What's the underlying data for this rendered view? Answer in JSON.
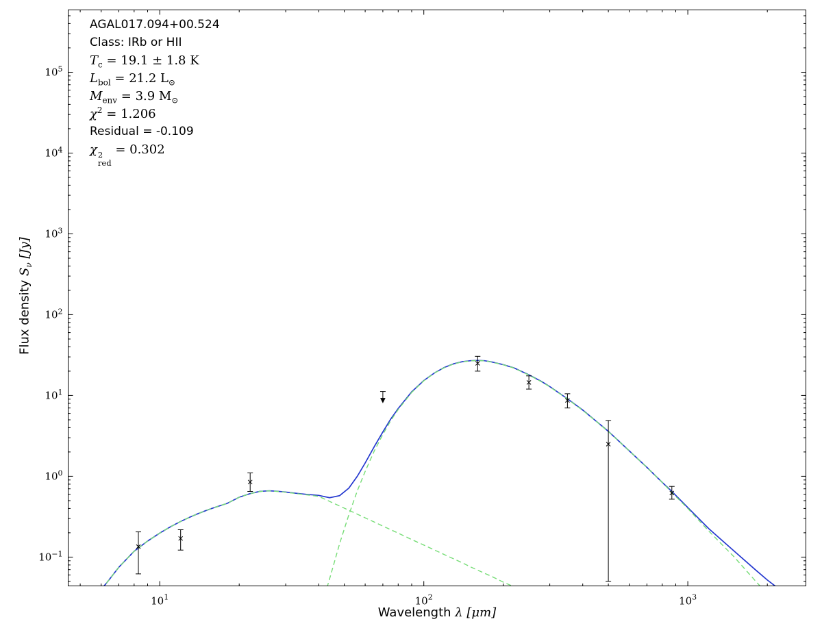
{
  "window": {
    "background": "#ffffff"
  },
  "axes": {
    "xlabel": {
      "pre": "Wavelength ",
      "sym": "λ",
      "post": " [μm]"
    },
    "ylabel": {
      "pre": "Flux density ",
      "sym": "S",
      "sub": "ν",
      "post": " [Jy]"
    }
  },
  "chart_data": {
    "type": "line",
    "xscale": "log",
    "yscale": "log",
    "title": "",
    "xlabel": "Wavelength λ [μm]",
    "ylabel": "Flux density S_ν [Jy]",
    "xlim": [
      4.5,
      2800
    ],
    "ylim": [
      0.044,
      590000
    ],
    "grid": false,
    "tick_base": "10",
    "x_tick_exponents": [
      1,
      2,
      3
    ],
    "y_tick_exponents": [
      -1,
      0,
      1,
      2,
      3,
      4,
      5
    ],
    "annotation": {
      "source": "AGAL017.094+00.524",
      "class_line": "Class: IRb or HII",
      "tc": {
        "sym": "T",
        "sub": "c",
        "rest": " = 19.1 ± 1.8 K"
      },
      "lbol": {
        "sym": "L",
        "sub": "bol",
        "eq": " = 21.2 ",
        "unit": "L",
        "unit_sub": "⊙"
      },
      "menv": {
        "sym": "M",
        "sub": "env",
        "eq": " = 3.9 ",
        "unit": "M",
        "unit_sub": "⊙"
      },
      "chi2": {
        "sym": "χ",
        "sup": "2",
        "rest": " = 1.206"
      },
      "residual": "Residual = -0.109",
      "chi2red": {
        "sym": "χ",
        "sup": "2",
        "sub": "red",
        "rest": " = 0.302"
      }
    },
    "colors": {
      "model_total": "#2438cf",
      "components": "#77dd77",
      "data_points": "#000000",
      "frame": "#000000"
    },
    "series": [
      {
        "name": "model-total",
        "color": "#2438cf",
        "style": "solid",
        "width": 1.7,
        "points": [
          [
            6.0,
            0.04
          ],
          [
            6.3,
            0.048
          ],
          [
            7,
            0.075
          ],
          [
            8,
            0.118
          ],
          [
            9,
            0.158
          ],
          [
            10,
            0.198
          ],
          [
            11,
            0.238
          ],
          [
            12,
            0.276
          ],
          [
            13,
            0.312
          ],
          [
            14,
            0.346
          ],
          [
            15,
            0.378
          ],
          [
            16,
            0.408
          ],
          [
            18,
            0.462
          ],
          [
            20,
            0.551
          ],
          [
            22,
            0.611
          ],
          [
            24,
            0.651
          ],
          [
            26,
            0.662
          ],
          [
            28,
            0.653
          ],
          [
            30,
            0.637
          ],
          [
            33,
            0.615
          ],
          [
            36,
            0.598
          ],
          [
            40,
            0.58
          ],
          [
            44,
            0.543
          ],
          [
            48,
            0.576
          ],
          [
            52,
            0.712
          ],
          [
            56,
            1.0
          ],
          [
            60,
            1.46
          ],
          [
            65,
            2.34
          ],
          [
            70,
            3.54
          ],
          [
            75,
            5.12
          ],
          [
            80,
            6.9
          ],
          [
            90,
            11.1
          ],
          [
            100,
            15.3
          ],
          [
            110,
            19.1
          ],
          [
            120,
            22.3
          ],
          [
            130,
            24.7
          ],
          [
            140,
            26.2
          ],
          [
            150,
            26.9
          ],
          [
            160,
            27.2
          ],
          [
            170,
            26.9
          ],
          [
            180,
            26.1
          ],
          [
            200,
            24.1
          ],
          [
            220,
            21.9
          ],
          [
            250,
            18.0
          ],
          [
            280,
            14.8
          ],
          [
            300,
            12.9
          ],
          [
            350,
            9.1
          ],
          [
            400,
            6.6
          ],
          [
            450,
            4.8
          ],
          [
            500,
            3.6
          ],
          [
            600,
            2.07
          ],
          [
            700,
            1.29
          ],
          [
            800,
            0.84
          ],
          [
            870,
            0.65
          ],
          [
            1000,
            0.41
          ],
          [
            1200,
            0.225
          ],
          [
            1500,
            0.118
          ],
          [
            1800,
            0.07
          ],
          [
            2000,
            0.052
          ],
          [
            2400,
            0.033
          ],
          [
            2772,
            0.021
          ]
        ]
      },
      {
        "name": "component-warm",
        "color": "#77dd77",
        "style": "dashed",
        "width": 1.4,
        "points": [
          [
            6.0,
            0.04
          ],
          [
            6.3,
            0.048
          ],
          [
            7,
            0.075
          ],
          [
            8,
            0.118
          ],
          [
            9,
            0.158
          ],
          [
            10,
            0.198
          ],
          [
            11,
            0.238
          ],
          [
            12,
            0.276
          ],
          [
            13,
            0.312
          ],
          [
            14,
            0.346
          ],
          [
            15,
            0.378
          ],
          [
            16,
            0.408
          ],
          [
            18,
            0.462
          ],
          [
            20,
            0.55
          ],
          [
            22,
            0.61
          ],
          [
            24,
            0.65
          ],
          [
            26,
            0.66
          ],
          [
            28,
            0.65
          ],
          [
            30,
            0.635
          ],
          [
            33,
            0.61
          ],
          [
            36,
            0.59
          ],
          [
            40,
            0.565
          ],
          [
            44,
            0.489
          ],
          [
            48,
            0.429
          ],
          [
            52,
            0.38
          ],
          [
            56,
            0.34
          ],
          [
            60,
            0.306
          ],
          [
            65,
            0.271
          ],
          [
            70,
            0.242
          ],
          [
            75,
            0.218
          ],
          [
            80,
            0.198
          ],
          [
            90,
            0.165
          ],
          [
            100,
            0.141
          ],
          [
            110,
            0.122
          ],
          [
            120,
            0.107
          ],
          [
            130,
            0.095
          ],
          [
            140,
            0.085
          ],
          [
            150,
            0.076
          ],
          [
            160,
            0.069
          ],
          [
            170,
            0.063
          ],
          [
            180,
            0.058
          ],
          [
            200,
            0.049
          ],
          [
            216,
            0.044
          ],
          [
            225,
            0.04
          ]
        ]
      },
      {
        "name": "component-cold",
        "color": "#77dd77",
        "style": "dashed",
        "width": 1.4,
        "points": [
          [
            43,
            0.042
          ],
          [
            44,
            0.054
          ],
          [
            46,
            0.09
          ],
          [
            48,
            0.147
          ],
          [
            52,
            0.332
          ],
          [
            56,
            0.66
          ],
          [
            60,
            1.15
          ],
          [
            65,
            2.07
          ],
          [
            70,
            3.3
          ],
          [
            75,
            4.9
          ],
          [
            80,
            6.7
          ],
          [
            90,
            10.9
          ],
          [
            100,
            15.2
          ],
          [
            110,
            19.0
          ],
          [
            120,
            22.2
          ],
          [
            130,
            24.6
          ],
          [
            140,
            26.1
          ],
          [
            150,
            26.8
          ],
          [
            160,
            27.0
          ],
          [
            170,
            26.8
          ],
          [
            180,
            26.0
          ],
          [
            200,
            24.0
          ],
          [
            220,
            21.8
          ],
          [
            250,
            17.9
          ],
          [
            280,
            14.7
          ],
          [
            300,
            12.8
          ],
          [
            350,
            9.05
          ],
          [
            400,
            6.54
          ],
          [
            450,
            4.78
          ],
          [
            500,
            3.58
          ],
          [
            600,
            2.07
          ],
          [
            700,
            1.29
          ],
          [
            800,
            0.84
          ],
          [
            870,
            0.63
          ],
          [
            1000,
            0.4
          ],
          [
            1200,
            0.21
          ],
          [
            1500,
            0.1
          ],
          [
            1800,
            0.051
          ],
          [
            2000,
            0.035
          ],
          [
            2400,
            0.018
          ],
          [
            2772,
            0.011
          ]
        ]
      }
    ],
    "data_points": [
      {
        "wavelength_um": 8.3,
        "flux_jy": 0.135,
        "flux_lo": 0.062,
        "flux_hi": 0.205,
        "upper_limit": false
      },
      {
        "wavelength_um": 12,
        "flux_jy": 0.17,
        "flux_lo": 0.122,
        "flux_hi": 0.218,
        "upper_limit": false
      },
      {
        "wavelength_um": 22,
        "flux_jy": 0.85,
        "flux_lo": 0.65,
        "flux_hi": 1.1,
        "upper_limit": false
      },
      {
        "wavelength_um": 70,
        "flux_jy": 11.2,
        "upper_limit": true
      },
      {
        "wavelength_um": 160,
        "flux_jy": 25,
        "flux_lo": 20,
        "flux_hi": 30.5,
        "upper_limit": false
      },
      {
        "wavelength_um": 250,
        "flux_jy": 14.5,
        "flux_lo": 12,
        "flux_hi": 17.5,
        "upper_limit": false
      },
      {
        "wavelength_um": 350,
        "flux_jy": 8.7,
        "flux_lo": 7,
        "flux_hi": 10.5,
        "upper_limit": false
      },
      {
        "wavelength_um": 500,
        "flux_jy": 2.5,
        "flux_lo": 0.05,
        "flux_hi": 4.9,
        "upper_limit": false
      },
      {
        "wavelength_um": 870,
        "flux_jy": 0.62,
        "flux_lo": 0.52,
        "flux_hi": 0.75,
        "upper_limit": false
      }
    ]
  }
}
